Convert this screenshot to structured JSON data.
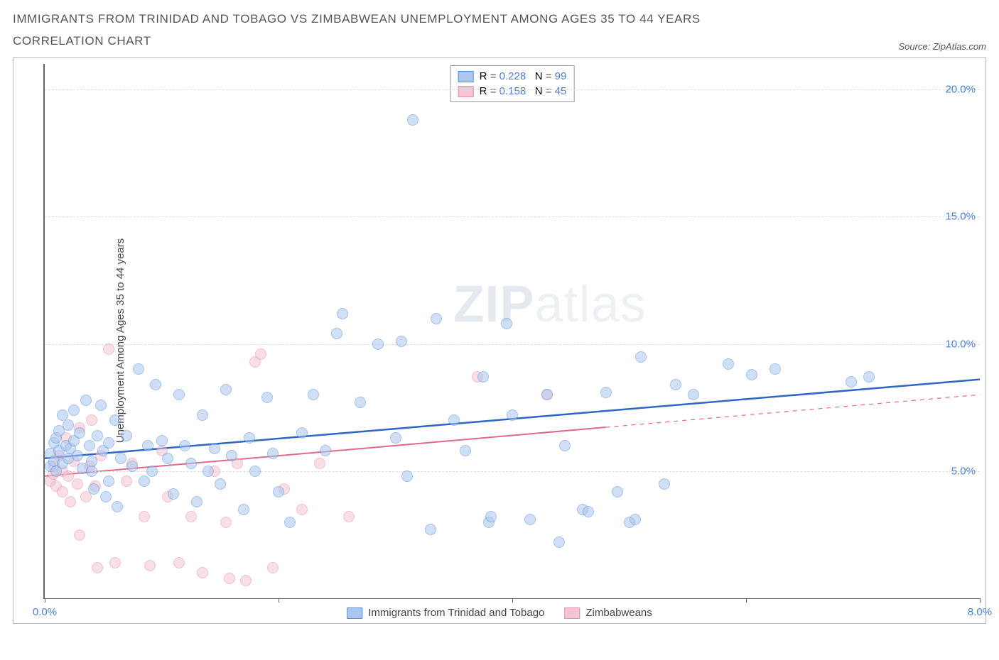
{
  "header": {
    "title": "IMMIGRANTS FROM TRINIDAD AND TOBAGO VS ZIMBABWEAN UNEMPLOYMENT AMONG AGES 35 TO 44 YEARS CORRELATION CHART",
    "source_label": "Source: ",
    "source_name": "ZipAtlas.com"
  },
  "chart": {
    "type": "scatter",
    "ylabel": "Unemployment Among Ages 35 to 44 years",
    "background_color": "#ffffff",
    "grid_color": "#dddddd",
    "axis_color": "#666666",
    "tick_label_color": "#4a7fd8",
    "label_fontsize": 15,
    "xlim": [
      0.0,
      8.0
    ],
    "ylim": [
      0.0,
      21.0
    ],
    "xticks": [
      0.0,
      2.0,
      4.0,
      6.0,
      8.0
    ],
    "xtick_labels": [
      "0.0%",
      "",
      "",
      "",
      "8.0%"
    ],
    "yticks": [
      5.0,
      10.0,
      15.0,
      20.0
    ],
    "ytick_labels": [
      "5.0%",
      "10.0%",
      "15.0%",
      "20.0%"
    ],
    "marker_radius": 8,
    "marker_opacity": 0.55,
    "watermark_html": "<b>ZIP</b>atlas"
  },
  "series": {
    "a": {
      "label": "Immigrants from Trinidad and Tobago",
      "fill": "#a9c7ef",
      "stroke": "#5b8fd6",
      "line_color": "#2e66c4",
      "R": "0.228",
      "N": "99",
      "regression": {
        "x1": 0.0,
        "y1": 5.5,
        "x2": 8.0,
        "y2": 8.6,
        "dash_from_x": null
      },
      "points": [
        [
          0.05,
          5.2
        ],
        [
          0.05,
          5.7
        ],
        [
          0.08,
          6.1
        ],
        [
          0.08,
          5.4
        ],
        [
          0.1,
          6.3
        ],
        [
          0.1,
          5.0
        ],
        [
          0.12,
          6.6
        ],
        [
          0.12,
          5.8
        ],
        [
          0.15,
          7.2
        ],
        [
          0.15,
          5.3
        ],
        [
          0.18,
          6.0
        ],
        [
          0.2,
          5.5
        ],
        [
          0.2,
          6.8
        ],
        [
          0.22,
          5.9
        ],
        [
          0.25,
          6.2
        ],
        [
          0.25,
          7.4
        ],
        [
          0.28,
          5.6
        ],
        [
          0.3,
          6.5
        ],
        [
          0.32,
          5.1
        ],
        [
          0.35,
          7.8
        ],
        [
          0.38,
          6.0
        ],
        [
          0.4,
          5.4
        ],
        [
          0.42,
          4.3
        ],
        [
          0.45,
          6.4
        ],
        [
          0.48,
          7.6
        ],
        [
          0.5,
          5.8
        ],
        [
          0.52,
          4.0
        ],
        [
          0.55,
          6.1
        ],
        [
          0.6,
          7.0
        ],
        [
          0.62,
          3.6
        ],
        [
          0.65,
          5.5
        ],
        [
          0.7,
          6.4
        ],
        [
          0.75,
          5.2
        ],
        [
          0.8,
          9.0
        ],
        [
          0.85,
          4.6
        ],
        [
          0.88,
          6.0
        ],
        [
          0.92,
          5.0
        ],
        [
          0.95,
          8.4
        ],
        [
          1.0,
          6.2
        ],
        [
          1.05,
          5.5
        ],
        [
          1.1,
          4.1
        ],
        [
          1.15,
          8.0
        ],
        [
          1.2,
          6.0
        ],
        [
          1.25,
          5.3
        ],
        [
          1.3,
          3.8
        ],
        [
          1.35,
          7.2
        ],
        [
          1.45,
          5.9
        ],
        [
          1.5,
          4.5
        ],
        [
          1.55,
          8.2
        ],
        [
          1.6,
          5.6
        ],
        [
          1.7,
          3.5
        ],
        [
          1.75,
          6.3
        ],
        [
          1.8,
          5.0
        ],
        [
          1.9,
          7.9
        ],
        [
          1.95,
          5.7
        ],
        [
          2.0,
          4.2
        ],
        [
          2.1,
          3.0
        ],
        [
          2.2,
          6.5
        ],
        [
          2.3,
          8.0
        ],
        [
          2.4,
          5.8
        ],
        [
          2.5,
          10.4
        ],
        [
          2.55,
          11.2
        ],
        [
          2.7,
          7.7
        ],
        [
          2.85,
          10.0
        ],
        [
          3.0,
          6.3
        ],
        [
          3.05,
          10.1
        ],
        [
          3.1,
          4.8
        ],
        [
          3.15,
          18.8
        ],
        [
          3.3,
          2.7
        ],
        [
          3.35,
          11.0
        ],
        [
          3.5,
          7.0
        ],
        [
          3.6,
          5.8
        ],
        [
          3.75,
          8.7
        ],
        [
          3.8,
          3.0
        ],
        [
          3.82,
          3.2
        ],
        [
          3.95,
          10.8
        ],
        [
          4.0,
          7.2
        ],
        [
          4.15,
          3.1
        ],
        [
          4.3,
          8.0
        ],
        [
          4.4,
          2.2
        ],
        [
          4.45,
          6.0
        ],
        [
          4.6,
          3.5
        ],
        [
          4.65,
          3.4
        ],
        [
          4.8,
          8.1
        ],
        [
          4.9,
          4.2
        ],
        [
          5.0,
          3.0
        ],
        [
          5.05,
          3.1
        ],
        [
          5.1,
          9.5
        ],
        [
          5.3,
          4.5
        ],
        [
          5.4,
          8.4
        ],
        [
          5.55,
          8.0
        ],
        [
          5.85,
          9.2
        ],
        [
          6.05,
          8.8
        ],
        [
          6.25,
          9.0
        ],
        [
          6.9,
          8.5
        ],
        [
          7.05,
          8.7
        ],
        [
          0.4,
          5.0
        ],
        [
          0.55,
          4.6
        ],
        [
          1.4,
          5.0
        ]
      ]
    },
    "b": {
      "label": "Zimbabweans",
      "fill": "#f3c4d1",
      "stroke": "#e78fa9",
      "line_color": "#e06a8a",
      "R": "0.158",
      "N": "45",
      "regression": {
        "x1": 0.0,
        "y1": 4.8,
        "x2": 8.0,
        "y2": 8.0,
        "dash_from_x": 4.8
      },
      "points": [
        [
          0.05,
          4.6
        ],
        [
          0.07,
          4.9
        ],
        [
          0.08,
          5.2
        ],
        [
          0.1,
          4.4
        ],
        [
          0.12,
          5.6
        ],
        [
          0.15,
          5.0
        ],
        [
          0.15,
          4.2
        ],
        [
          0.18,
          6.3
        ],
        [
          0.2,
          4.8
        ],
        [
          0.22,
          3.8
        ],
        [
          0.25,
          5.4
        ],
        [
          0.28,
          4.5
        ],
        [
          0.3,
          6.7
        ],
        [
          0.3,
          2.5
        ],
        [
          0.35,
          4.0
        ],
        [
          0.38,
          5.2
        ],
        [
          0.4,
          7.0
        ],
        [
          0.43,
          4.4
        ],
        [
          0.45,
          1.2
        ],
        [
          0.48,
          5.6
        ],
        [
          0.55,
          9.8
        ],
        [
          0.6,
          1.4
        ],
        [
          0.7,
          4.6
        ],
        [
          0.75,
          5.3
        ],
        [
          0.85,
          3.2
        ],
        [
          0.9,
          1.3
        ],
        [
          1.0,
          5.8
        ],
        [
          1.05,
          4.0
        ],
        [
          1.15,
          1.4
        ],
        [
          1.25,
          3.2
        ],
        [
          1.35,
          1.0
        ],
        [
          1.45,
          5.0
        ],
        [
          1.55,
          3.0
        ],
        [
          1.58,
          0.8
        ],
        [
          1.65,
          5.3
        ],
        [
          1.72,
          0.7
        ],
        [
          1.8,
          9.3
        ],
        [
          1.85,
          9.6
        ],
        [
          1.95,
          1.2
        ],
        [
          2.05,
          4.3
        ],
        [
          2.2,
          3.5
        ],
        [
          2.35,
          5.3
        ],
        [
          2.6,
          3.2
        ],
        [
          3.7,
          8.7
        ],
        [
          4.3,
          8.0
        ]
      ]
    }
  },
  "legend_top": {
    "r_label": "R",
    "n_label": "N",
    "eq": "="
  }
}
